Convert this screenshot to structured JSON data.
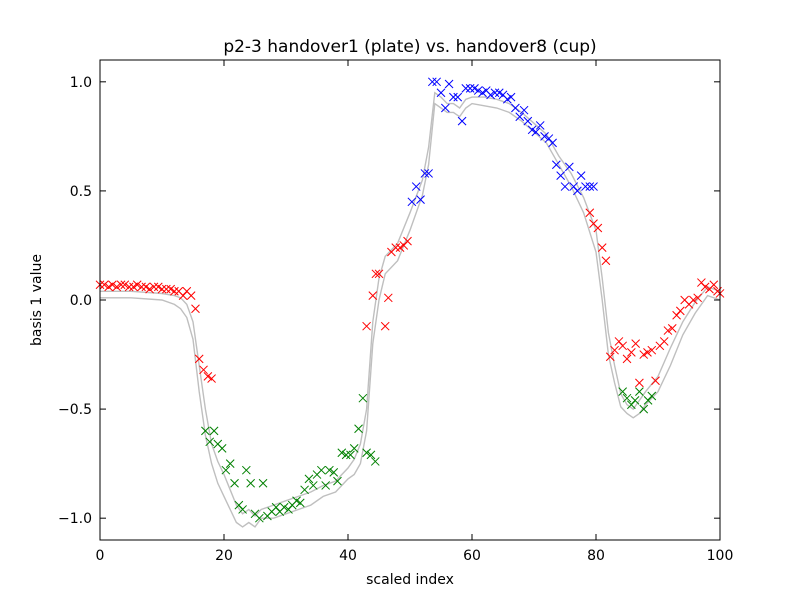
{
  "chart_data": {
    "type": "scatter",
    "title": "p2-3 handover1 (plate) vs. handover8 (cup)",
    "xlabel": "scaled index",
    "ylabel": "basis 1 value",
    "xlim": [
      0,
      100
    ],
    "ylim": [
      -1.1,
      1.1
    ],
    "xticks": [
      0,
      20,
      40,
      60,
      80,
      100
    ],
    "yticks": [
      -1.0,
      -0.5,
      0.0,
      0.5,
      1.0
    ],
    "xtick_labels": [
      "0",
      "20",
      "40",
      "60",
      "80",
      "100"
    ],
    "ytick_labels": [
      "−1.0",
      "−0.5",
      "0.0",
      "0.5",
      "1.0"
    ],
    "grid": false,
    "marker": "x",
    "colors": {
      "red": "#ff0000",
      "green": "#008000",
      "blue": "#0000ff",
      "band": "#bfbfbf"
    },
    "band_lines": [
      {
        "x": [
          0,
          5,
          10,
          12,
          13,
          14,
          15,
          16,
          17,
          18,
          19,
          20,
          21,
          22,
          23,
          24,
          25,
          26,
          28,
          30,
          32,
          34,
          36,
          38,
          40,
          41,
          42,
          43,
          44,
          45,
          46,
          48,
          50,
          52,
          53,
          54,
          55,
          56,
          57,
          58,
          59,
          60,
          62,
          64,
          66,
          68,
          70,
          72,
          74,
          76,
          78,
          80,
          81,
          82,
          83,
          84,
          85,
          86,
          87,
          88,
          90,
          92,
          94,
          96,
          98,
          100
        ],
        "y": [
          0.04,
          0.04,
          0.03,
          0.02,
          0.01,
          -0.02,
          -0.1,
          -0.3,
          -0.5,
          -0.66,
          -0.74,
          -0.8,
          -0.87,
          -0.94,
          -0.98,
          -0.96,
          -0.99,
          -0.96,
          -0.94,
          -0.92,
          -0.9,
          -0.88,
          -0.85,
          -0.83,
          -0.77,
          -0.73,
          -0.66,
          -0.5,
          -0.1,
          0.1,
          0.2,
          0.26,
          0.4,
          0.55,
          0.7,
          0.95,
          0.93,
          0.9,
          0.9,
          0.88,
          0.92,
          0.93,
          0.93,
          0.92,
          0.9,
          0.86,
          0.81,
          0.76,
          0.66,
          0.58,
          0.47,
          0.32,
          0.1,
          -0.15,
          -0.3,
          -0.43,
          -0.48,
          -0.5,
          -0.46,
          -0.42,
          -0.35,
          -0.22,
          -0.1,
          -0.01,
          0.06,
          0.04
        ]
      },
      {
        "x": [
          0,
          5,
          10,
          12,
          13,
          14,
          15,
          16,
          17,
          18,
          19,
          20,
          21,
          22,
          23,
          24,
          25,
          26,
          28,
          30,
          32,
          34,
          36,
          38,
          40,
          41,
          42,
          43,
          44,
          45,
          46,
          48,
          50,
          52,
          53,
          54,
          55,
          56,
          57,
          58,
          59,
          60,
          62,
          64,
          66,
          68,
          70,
          72,
          74,
          76,
          78,
          80,
          81,
          82,
          83,
          84,
          85,
          86,
          87,
          88,
          90,
          92,
          94,
          96,
          98,
          100
        ],
        "y": [
          0.01,
          0.01,
          0.0,
          -0.02,
          -0.04,
          -0.08,
          -0.18,
          -0.42,
          -0.62,
          -0.75,
          -0.84,
          -0.9,
          -0.96,
          -1.02,
          -1.04,
          -1.02,
          -1.04,
          -1.0,
          -1.0,
          -0.98,
          -0.96,
          -0.94,
          -0.9,
          -0.88,
          -0.82,
          -0.8,
          -0.75,
          -0.6,
          -0.2,
          0.0,
          0.12,
          0.18,
          0.32,
          0.48,
          0.62,
          0.9,
          0.88,
          0.86,
          0.86,
          0.84,
          0.88,
          0.9,
          0.89,
          0.88,
          0.86,
          0.82,
          0.77,
          0.72,
          0.62,
          0.52,
          0.4,
          0.22,
          0.0,
          -0.25,
          -0.38,
          -0.49,
          -0.52,
          -0.54,
          -0.52,
          -0.48,
          -0.42,
          -0.3,
          -0.16,
          -0.06,
          0.02,
          0.0
        ]
      }
    ],
    "series": [
      {
        "color": "red",
        "x": [
          0,
          0.7,
          1.4,
          2,
          2.7,
          3.4,
          4,
          4.7,
          5.4,
          6,
          6.7,
          7.4,
          8,
          8.7,
          9.4,
          10,
          10.7,
          11.4,
          12,
          12.7,
          13.4,
          14,
          14.7,
          15.4,
          16,
          16.7,
          17.4,
          18,
          43,
          44,
          44.5,
          45,
          46,
          46.5,
          47,
          47.7,
          48.4,
          49,
          49.6,
          79,
          79.6,
          80.3,
          81,
          81.6,
          82.3,
          83,
          83.7,
          84.3,
          85,
          85.7,
          86.4,
          87,
          87.7,
          88.3,
          89,
          89.6,
          90.3,
          91,
          91.6,
          92.3,
          93,
          93.6,
          94.3,
          95,
          95.7,
          96.4,
          97,
          97.6,
          98.3,
          99,
          99.6,
          100
        ],
        "y": [
          0.07,
          0.07,
          0.06,
          0.07,
          0.06,
          0.07,
          0.07,
          0.06,
          0.06,
          0.07,
          0.06,
          0.06,
          0.05,
          0.06,
          0.06,
          0.05,
          0.05,
          0.05,
          0.04,
          0.04,
          0.02,
          0.04,
          0.02,
          -0.04,
          -0.27,
          -0.32,
          -0.35,
          -0.36,
          -0.12,
          0.02,
          0.12,
          0.12,
          -0.12,
          0.01,
          0.22,
          0.24,
          0.24,
          0.25,
          0.27,
          0.4,
          0.35,
          0.33,
          0.24,
          0.18,
          -0.26,
          -0.23,
          -0.19,
          -0.21,
          -0.27,
          -0.24,
          -0.2,
          -0.38,
          -0.25,
          -0.24,
          -0.23,
          -0.37,
          -0.21,
          -0.19,
          -0.14,
          -0.13,
          -0.07,
          -0.05,
          0.0,
          -0.02,
          0.0,
          0.01,
          0.08,
          0.06,
          0.05,
          0.07,
          0.04,
          0.03
        ]
      },
      {
        "color": "green",
        "x": [
          17,
          17.7,
          18.4,
          19,
          19.7,
          20.3,
          21,
          21.7,
          22.4,
          23,
          23.6,
          24.3,
          25,
          25.7,
          26.3,
          27,
          27.7,
          28.4,
          29,
          29.7,
          30.4,
          31,
          31.7,
          32.3,
          33,
          33.7,
          34.4,
          35,
          35.7,
          36.4,
          37,
          37.7,
          38.3,
          39,
          39.7,
          40.4,
          41,
          41.7,
          42.4,
          43,
          43.7,
          44.4,
          84.3,
          85,
          85.7,
          86.3,
          87,
          87.7,
          88.4,
          89
        ],
        "y": [
          -0.6,
          -0.65,
          -0.6,
          -0.66,
          -0.68,
          -0.78,
          -0.75,
          -0.84,
          -0.94,
          -0.96,
          -0.78,
          -0.84,
          -0.98,
          -1.0,
          -0.84,
          -0.99,
          -0.97,
          -0.95,
          -0.97,
          -0.95,
          -0.96,
          -0.94,
          -0.92,
          -0.93,
          -0.87,
          -0.82,
          -0.85,
          -0.8,
          -0.78,
          -0.85,
          -0.78,
          -0.79,
          -0.83,
          -0.7,
          -0.71,
          -0.71,
          -0.68,
          -0.59,
          -0.45,
          -0.7,
          -0.71,
          -0.74,
          -0.42,
          -0.45,
          -0.48,
          -0.46,
          -0.42,
          -0.5,
          -0.46,
          -0.44
        ]
      },
      {
        "color": "blue",
        "x": [
          50.3,
          51,
          51.7,
          52.4,
          53,
          53.6,
          54.3,
          55,
          55.7,
          56.3,
          57,
          57.7,
          58.4,
          59,
          59.7,
          60.4,
          61,
          61.7,
          62.3,
          63,
          63.7,
          64.4,
          65,
          65.7,
          66.3,
          67,
          67.7,
          68.4,
          69,
          69.7,
          70.3,
          71,
          71.7,
          72.4,
          73,
          73.6,
          74.3,
          75,
          75.7,
          76.4,
          77,
          77.6,
          78.3,
          79,
          79.6
        ],
        "y": [
          0.45,
          0.52,
          0.46,
          0.58,
          0.58,
          1.0,
          1.0,
          0.95,
          0.88,
          0.99,
          0.93,
          0.93,
          0.82,
          0.97,
          0.97,
          0.97,
          0.96,
          0.95,
          0.96,
          0.94,
          0.95,
          0.95,
          0.94,
          0.92,
          0.93,
          0.88,
          0.84,
          0.87,
          0.82,
          0.78,
          0.77,
          0.8,
          0.75,
          0.74,
          0.72,
          0.62,
          0.57,
          0.52,
          0.61,
          0.52,
          0.5,
          0.57,
          0.52,
          0.52,
          0.52
        ]
      }
    ]
  }
}
